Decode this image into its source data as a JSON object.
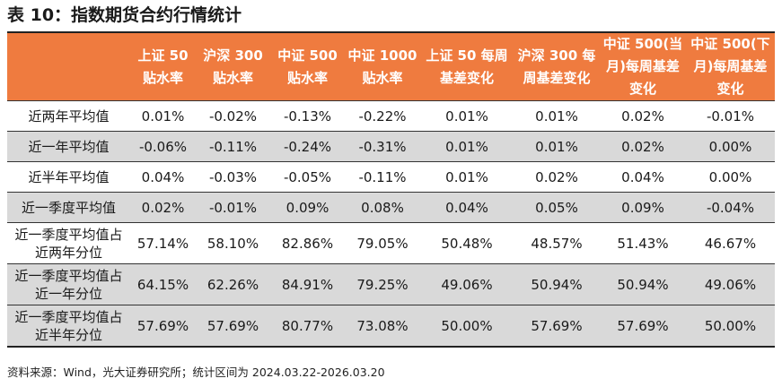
{
  "title": "表 10：指数期货合约行情统计",
  "table": {
    "headers": [
      "",
      "上证 50贴水率",
      "沪深 300贴水率",
      "中证 500贴水率",
      "中证 1000贴水率",
      "上证 50 每周基差变化",
      "沪深 300 每周基差变化",
      "中证 500(当月)每周基差变化",
      "中证 500(下月)每周基差变化"
    ],
    "rows": [
      [
        "近两年平均值",
        "0.01%",
        "-0.02%",
        "-0.13%",
        "-0.22%",
        "0.01%",
        "0.01%",
        "0.02%",
        "-0.01%"
      ],
      [
        "近一年平均值",
        "-0.06%",
        "-0.11%",
        "-0.24%",
        "-0.31%",
        "0.01%",
        "0.01%",
        "0.02%",
        "0.00%"
      ],
      [
        "近半年平均值",
        "0.04%",
        "-0.03%",
        "-0.05%",
        "-0.11%",
        "0.01%",
        "0.02%",
        "0.04%",
        "0.00%"
      ],
      [
        "近一季度平均值",
        "0.02%",
        "-0.01%",
        "0.09%",
        "0.08%",
        "0.04%",
        "0.05%",
        "0.09%",
        "-0.04%"
      ],
      [
        "近一季度平均值占近两年分位",
        "57.14%",
        "58.10%",
        "82.86%",
        "79.05%",
        "50.48%",
        "48.57%",
        "51.43%",
        "46.67%"
      ],
      [
        "近一季度平均值占近一年分位",
        "64.15%",
        "62.26%",
        "84.91%",
        "79.25%",
        "49.06%",
        "50.94%",
        "50.94%",
        "49.06%"
      ],
      [
        "近一季度平均值占近半年分位",
        "57.69%",
        "57.69%",
        "80.77%",
        "73.08%",
        "50.00%",
        "57.69%",
        "57.69%",
        "50.00%"
      ]
    ]
  },
  "source": "资料来源：Wind，光大证券研究所；统计区间为 2024.03.22-2026.03.20",
  "colors": {
    "header_bg": "#ef7b3f",
    "header_text": "#ffffff",
    "shaded_row": "#d9d9d9"
  }
}
